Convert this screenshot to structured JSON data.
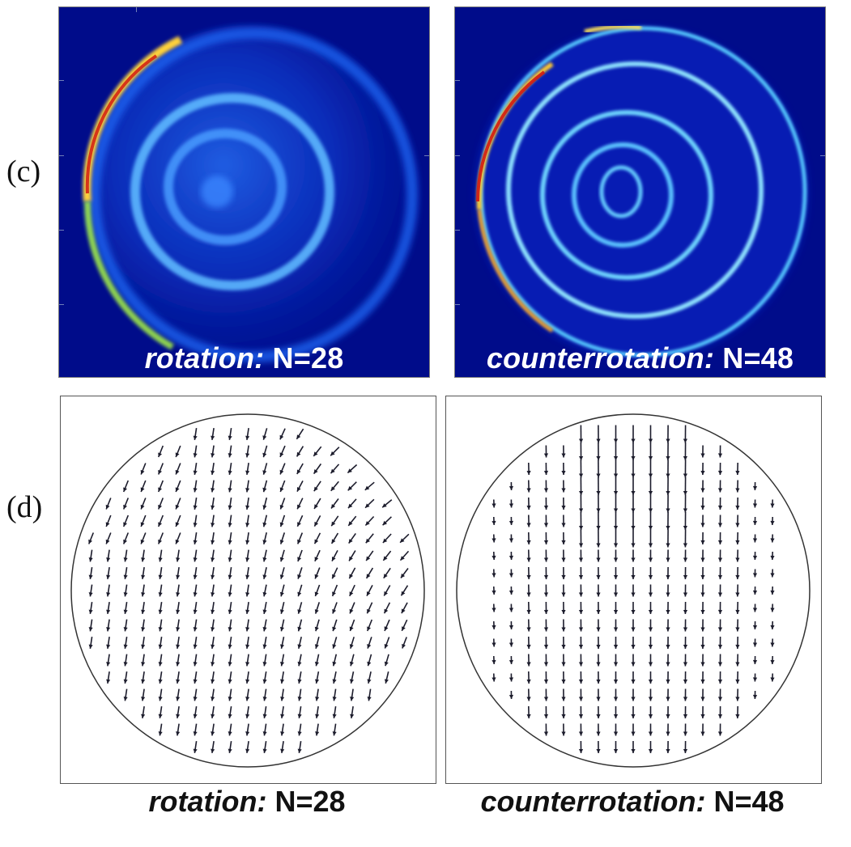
{
  "row_labels": {
    "c": "(c)",
    "d": "(d)"
  },
  "panels": {
    "heatmap_left": {
      "mode": "rotation:",
      "count": "N=28"
    },
    "heatmap_right": {
      "mode": "counterrotation:",
      "count": "N=48"
    },
    "vector_left": {
      "mode": "rotation:",
      "count": "N=28"
    },
    "vector_right": {
      "mode": "counterrotation:",
      "count": "N=48"
    }
  },
  "colors": {
    "heatmap_background": "#000c8a",
    "heatmap_ring": "#1e6cff",
    "heatmap_hot": "#d01a12",
    "arrow": "#1c1c2c",
    "circle": "#333333"
  },
  "flow_fields": {
    "left": {
      "pattern": "rotation",
      "particle_count": 28,
      "rings_in_heatmap": 3
    },
    "right": {
      "pattern": "counterrotation",
      "particle_count": 48,
      "rings_in_heatmap": 4
    }
  }
}
